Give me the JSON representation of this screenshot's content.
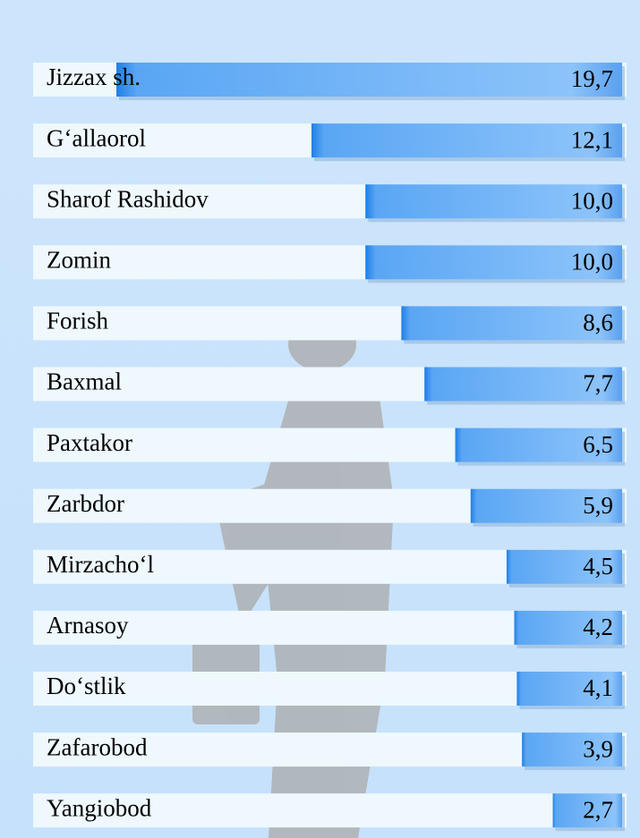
{
  "chart_data": {
    "type": "bar",
    "orientation": "horizontal",
    "categories": [
      "Jizzax sh.",
      "G‘allaorol",
      "Sharof Rashidov",
      "Zomin",
      "Forish",
      "Baxmal",
      "Paxtakor",
      "Zarbdor",
      "Mirzacho‘l",
      "Arnasoy",
      "Do‘stlik",
      "Zafarobod",
      "Yangiobod"
    ],
    "values": [
      19.7,
      12.1,
      10.0,
      10.0,
      8.6,
      7.7,
      6.5,
      5.9,
      4.5,
      4.2,
      4.1,
      3.9,
      2.7
    ],
    "value_labels": [
      "19,7",
      "12,1",
      "10,0",
      "10,0",
      "8,6",
      "7,7",
      "6,5",
      "5,9",
      "4,5",
      "4,2",
      "4,1",
      "3,9",
      "2,7"
    ],
    "color": "#6aaef5"
  }
}
